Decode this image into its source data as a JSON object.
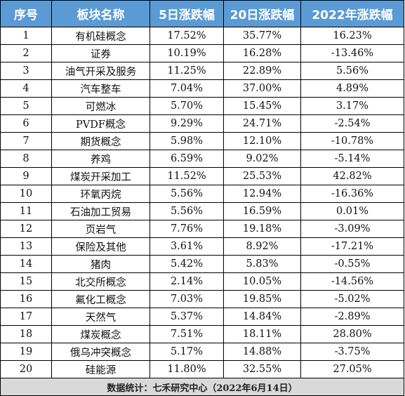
{
  "table": {
    "headers": [
      "序号",
      "板块名称",
      "5日涨跌幅",
      "20日涨跌幅",
      "2022年涨跌幅"
    ],
    "rows": [
      [
        "1",
        "有机硅概念",
        "17.52%",
        "35.77%",
        "16.23%"
      ],
      [
        "2",
        "证券",
        "10.19%",
        "16.28%",
        "-13.46%"
      ],
      [
        "3",
        "油气开采及服务",
        "11.25%",
        "22.89%",
        "5.56%"
      ],
      [
        "4",
        "汽车整车",
        "7.04%",
        "37.00%",
        "4.89%"
      ],
      [
        "5",
        "可燃冰",
        "5.70%",
        "15.45%",
        "3.17%"
      ],
      [
        "6",
        "PVDF概念",
        "9.29%",
        "24.71%",
        "-2.54%"
      ],
      [
        "7",
        "期货概念",
        "5.98%",
        "12.10%",
        "-10.78%"
      ],
      [
        "8",
        "养鸡",
        "6.59%",
        "9.02%",
        "-5.14%"
      ],
      [
        "9",
        "煤炭开采加工",
        "11.52%",
        "25.53%",
        "42.82%"
      ],
      [
        "10",
        "环氧丙烷",
        "5.56%",
        "12.94%",
        "-16.36%"
      ],
      [
        "11",
        "石油加工贸易",
        "5.56%",
        "16.59%",
        "0.01%"
      ],
      [
        "12",
        "页岩气",
        "7.76%",
        "19.18%",
        "-3.09%"
      ],
      [
        "13",
        "保险及其他",
        "3.61%",
        "8.92%",
        "-17.21%"
      ],
      [
        "14",
        "猪肉",
        "5.42%",
        "5.83%",
        "-0.55%"
      ],
      [
        "15",
        "北交所概念",
        "2.14%",
        "10.05%",
        "-14.56%"
      ],
      [
        "16",
        "氟化工概念",
        "7.03%",
        "19.85%",
        "-5.02%"
      ],
      [
        "17",
        "天然气",
        "5.37%",
        "14.84%",
        "-2.89%"
      ],
      [
        "18",
        "煤炭概念",
        "7.51%",
        "18.11%",
        "28.80%"
      ],
      [
        "19",
        "俄乌冲突概念",
        "5.17%",
        "14.88%",
        "-3.75%"
      ],
      [
        "20",
        "硅能源",
        "11.80%",
        "32.55%",
        "27.05%"
      ]
    ],
    "footer": "数据统计：七禾研究中心（2022年6月14日）"
  },
  "colors": {
    "header_bg": "#5b9bd5",
    "header_text": "#ffffff",
    "footer_bg": "#d9d9d9"
  }
}
